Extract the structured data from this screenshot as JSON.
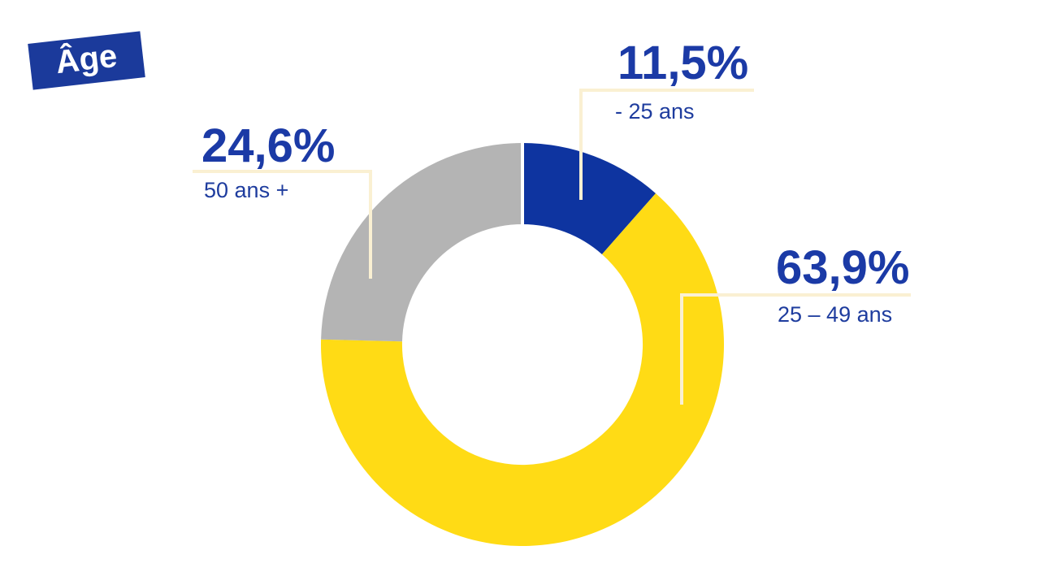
{
  "badge": {
    "label": "Âge"
  },
  "colors": {
    "badge_bg": "#1B3A9B",
    "number_text": "#1B3AA6",
    "label_text": "#1E3C9E",
    "leader_line": "#FAF0D2",
    "background": "#FFFFFF"
  },
  "chart_data": {
    "type": "pie",
    "subtype": "donut",
    "title": "Âge",
    "unit": "%",
    "start_angle_deg": 0,
    "direction": "clockwise",
    "inner_radius_ratio": 0.597,
    "legend_position": "none",
    "slices": [
      {
        "label": "- 25 ans",
        "value": 11.5,
        "display": "11,5%",
        "color": "#0E34A0"
      },
      {
        "label": "25 – 49 ans",
        "value": 63.9,
        "display": "63,9%",
        "color": "#FFDB15"
      },
      {
        "label": "50 ans +",
        "value": 24.6,
        "display": "24,6%",
        "color": "#B4B4B4"
      }
    ]
  }
}
